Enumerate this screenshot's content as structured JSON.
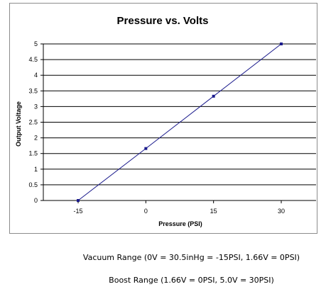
{
  "chart_data": {
    "type": "line",
    "title": "Pressure vs. Volts",
    "xlabel": "Pressure (PSI)",
    "ylabel": "Output Voltage",
    "x_ticks": [
      "-15",
      "0",
      "15",
      "30"
    ],
    "y_ticks": [
      "0",
      "0.5",
      "1",
      "1.5",
      "2",
      "2.5",
      "3",
      "3.5",
      "4",
      "4.5",
      "5"
    ],
    "xlim": [
      -15,
      30
    ],
    "ylim": [
      0,
      5
    ],
    "grid": "horizontal",
    "series": [
      {
        "x": [
          -15,
          0,
          15,
          30
        ],
        "y": [
          0,
          1.66,
          3.33,
          5.0
        ]
      }
    ],
    "colors": {
      "line": "#1a1a8c",
      "marker": "#1a1a8c",
      "grid": "#000000",
      "frame": "#8c8c8c"
    }
  },
  "captions": {
    "vacuum": "Vacuum Range (0V = 30.5inHg = -15PSI, 1.66V = 0PSI)",
    "boost": "Boost Range (1.66V = 0PSI, 5.0V = 30PSI)"
  }
}
